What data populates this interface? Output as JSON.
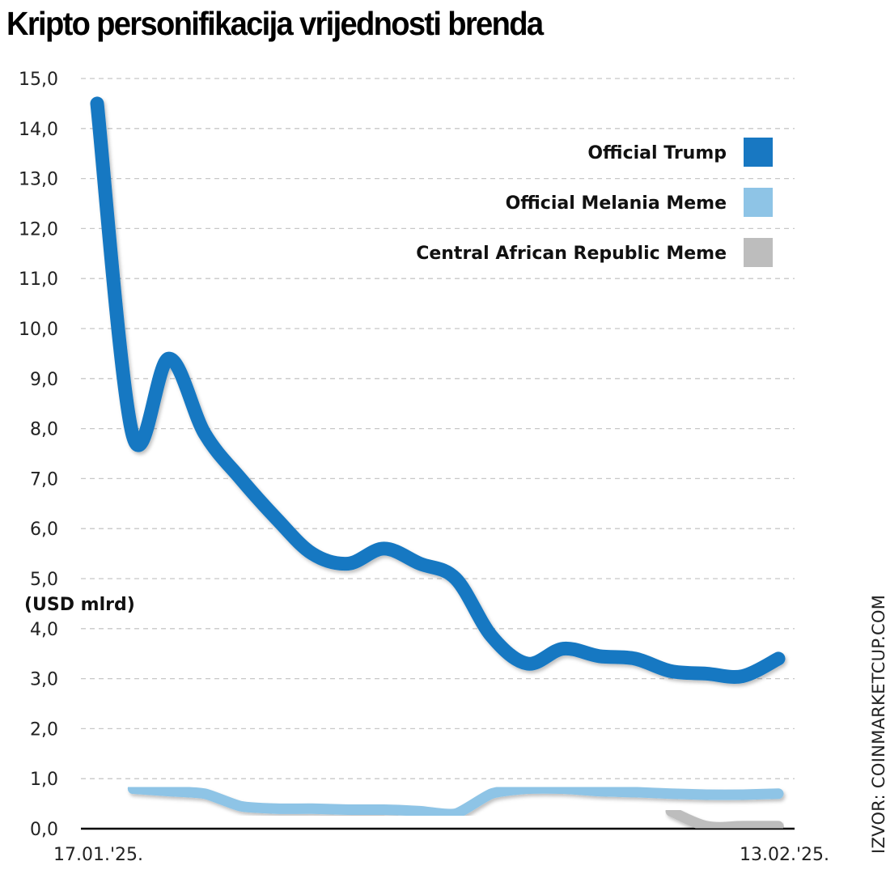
{
  "title": "Kripto personifikacija vrijednosti brenda",
  "source": "IZVOR: COINMARKETCUP.COM",
  "chart_data": {
    "type": "line",
    "title": "Kripto personifikacija vrijednosti brenda",
    "xlabel": "",
    "ylabel": "(USD mlrd)",
    "x_tick_labels": [
      "17.01.'25.",
      "13.02.'25."
    ],
    "ylim": [
      0,
      15
    ],
    "y_ticks": [
      0,
      1,
      2,
      3,
      4,
      5,
      6,
      7,
      8,
      9,
      10,
      11,
      12,
      13,
      14,
      15
    ],
    "y_tick_labels": [
      "0,0",
      "1,0",
      "2,0",
      "3,0",
      "4,0",
      "5,0",
      "6,0",
      "7,0",
      "8,0",
      "9,0",
      "10,0",
      "11,0",
      "12,0",
      "13,0",
      "14,0",
      "15,0"
    ],
    "grid": true,
    "legend_position": "top-right",
    "x_points": 20,
    "series": [
      {
        "name": "Official Trump",
        "color": "#1878c2",
        "start_index": 0,
        "values": [
          14.5,
          7.85,
          9.4,
          7.9,
          7.0,
          6.2,
          5.5,
          5.3,
          5.6,
          5.3,
          5.0,
          3.85,
          3.3,
          3.6,
          3.45,
          3.4,
          3.15,
          3.1,
          3.05,
          3.4
        ]
      },
      {
        "name": "Official Melania Meme",
        "color": "#8ec4e6",
        "start_index": 1,
        "values": [
          0.8,
          0.75,
          0.7,
          0.45,
          0.4,
          0.4,
          0.38,
          0.38,
          0.35,
          0.3,
          0.7,
          0.8,
          0.8,
          0.75,
          0.73,
          0.7,
          0.68,
          0.68,
          0.7
        ]
      },
      {
        "name": "Central African Republic Meme",
        "color": "#bdbdbd",
        "start_index": 16,
        "values": [
          0.35,
          0.05,
          0.05,
          0.05
        ]
      }
    ]
  }
}
